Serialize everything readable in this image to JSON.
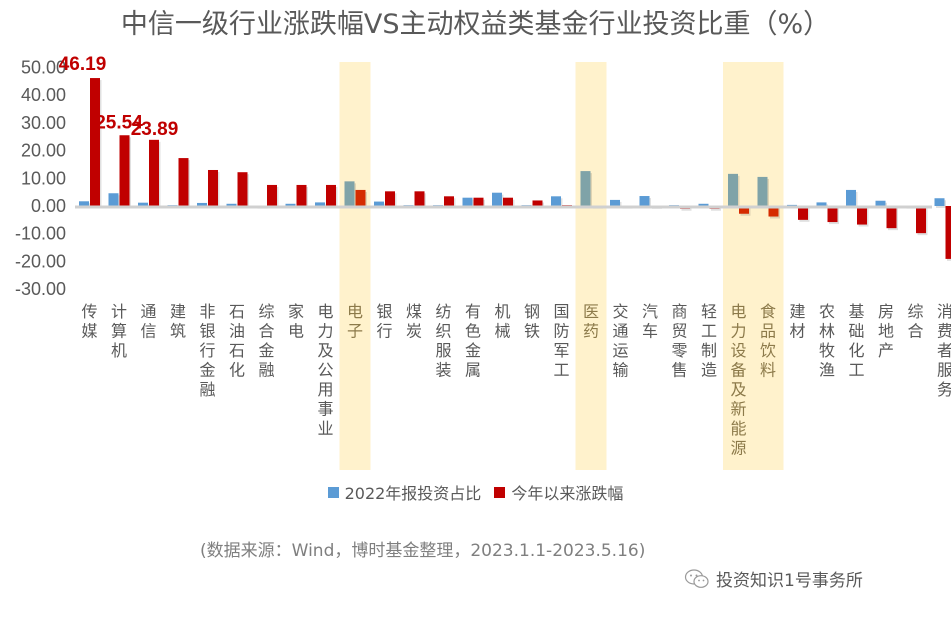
{
  "chart_data": {
    "type": "bar",
    "title": "中信一级行业涨跌幅VS主动权益类基金行业投资比重（%）",
    "xlabel": "",
    "ylabel": "",
    "ylim": [
      -30,
      50
    ],
    "yticks": [
      "50.00",
      "40.00",
      "30.00",
      "20.00",
      "10.00",
      "0.00",
      "-10.00",
      "-20.00",
      "-30.00"
    ],
    "ytick_values": [
      50,
      40,
      30,
      20,
      10,
      0,
      -10,
      -20,
      -30
    ],
    "grid": false,
    "legend_position": "bottom",
    "categories": [
      "传媒",
      "计算机",
      "通信",
      "建筑",
      "非银行金融",
      "石油石化",
      "综合金融",
      "家电",
      "电力及公用事业",
      "电子",
      "银行",
      "煤炭",
      "纺织服装",
      "有色金属",
      "机械",
      "钢铁",
      "国防军工",
      "医药",
      "交通运输",
      "汽车",
      "商贸零售",
      "轻工制造",
      "电力设备及新能源",
      "食品饮料",
      "建材",
      "农林牧渔",
      "基础化工",
      "房地产",
      "综合",
      "消费者服务"
    ],
    "highlighted_categories": [
      "电子",
      "医药",
      "电力设备及新能源",
      "食品饮料"
    ],
    "series": [
      {
        "name": "2022年报投资占比",
        "color": "#5b9bd5",
        "highlight_color": "#7fa3a8",
        "values": [
          1.7,
          4.6,
          1.2,
          0.3,
          1.1,
          0.8,
          0.0,
          0.8,
          1.3,
          8.9,
          1.6,
          0.3,
          0.3,
          3.0,
          4.8,
          0.3,
          3.5,
          12.6,
          2.2,
          3.6,
          0.3,
          0.8,
          11.6,
          10.5,
          0.4,
          1.3,
          5.8,
          1.9,
          0.0,
          2.8
        ]
      },
      {
        "name": "今年以来涨跌幅",
        "color": "#c00000",
        "highlight_color": "#d52b00",
        "values": [
          46.19,
          25.54,
          23.89,
          17.3,
          13.0,
          12.2,
          7.6,
          7.6,
          7.6,
          5.8,
          5.3,
          5.3,
          3.5,
          3.0,
          3.0,
          2.0,
          0.3,
          0.0,
          -0.2,
          -0.3,
          -1.0,
          -1.0,
          -2.8,
          -3.8,
          -5.0,
          -5.8,
          -6.7,
          -8.0,
          -9.8,
          -19.1
        ]
      }
    ],
    "data_labels": [
      {
        "category": "传媒",
        "series": "今年以来涨跌幅",
        "text": "46.19"
      },
      {
        "category": "计算机",
        "series": "今年以来涨跌幅",
        "text": "25.54"
      },
      {
        "category": "通信",
        "series": "今年以来涨跌幅",
        "text": "23.89"
      }
    ]
  },
  "highlight_band_color": "#fff2cc",
  "legend": {
    "items": [
      {
        "label": "2022年报投资占比",
        "color": "#5b9bd5"
      },
      {
        "label": "今年以来涨跌幅",
        "color": "#c00000"
      }
    ]
  },
  "footer": {
    "source": "(数据来源：Wind，博时基金整理，2023.1.1-2023.5.16)",
    "brand": "投资知识1号事务所",
    "brand_icon": "wechat-icon"
  }
}
